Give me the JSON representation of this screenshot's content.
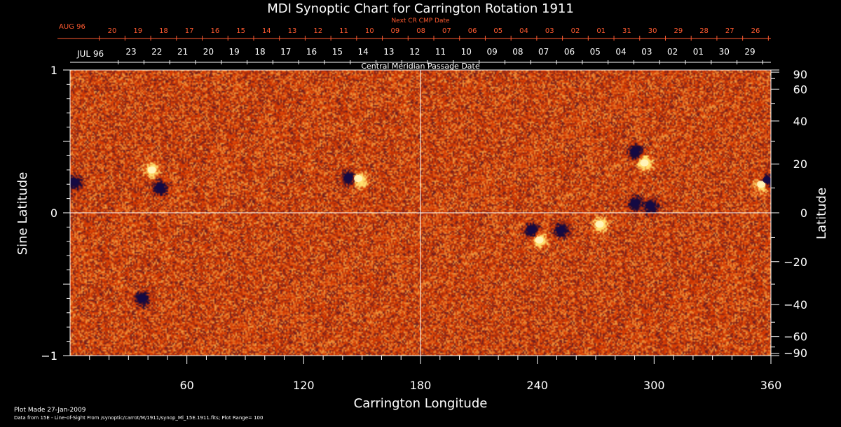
{
  "title": "MDI Synoptic Chart for Carrington Rotation 1911",
  "top_axis": {
    "caption": "Next CR CMP Date",
    "start_label": "AUG 96",
    "labels": [
      "20",
      "19",
      "18",
      "17",
      "16",
      "15",
      "14",
      "13",
      "12",
      "11",
      "10",
      "09",
      "08",
      "07",
      "06",
      "05",
      "04",
      "03",
      "02",
      "01",
      "31",
      "30",
      "29",
      "28",
      "27",
      "26"
    ]
  },
  "second_axis": {
    "caption": "Central Meridian Passage Date",
    "start_label": "JUL 96",
    "labels": [
      "23",
      "22",
      "21",
      "20",
      "19",
      "18",
      "17",
      "16",
      "15",
      "14",
      "13",
      "12",
      "11",
      "10",
      "09",
      "08",
      "07",
      "06",
      "05",
      "04",
      "03",
      "02",
      "01",
      "30",
      "29"
    ]
  },
  "chart_data": {
    "type": "heatmap",
    "title": "MDI Synoptic Chart for Carrington Rotation 1911",
    "xlabel": "Carrington Longitude",
    "ylabel": "Sine Latitude",
    "y2label": "Latitude",
    "xlim": [
      0,
      360
    ],
    "ylim": [
      -1,
      1
    ],
    "x_ticks": [
      60,
      120,
      180,
      240,
      300,
      360
    ],
    "y_ticks": [
      {
        "value": 1,
        "label": "1"
      },
      {
        "value": 0,
        "label": "0"
      },
      {
        "value": -1,
        "label": "−1"
      }
    ],
    "y2_ticks": [
      {
        "deg": 90,
        "label": "90"
      },
      {
        "deg": 60,
        "label": "60"
      },
      {
        "deg": 40,
        "label": "40"
      },
      {
        "deg": 20,
        "label": "20"
      },
      {
        "deg": 0,
        "label": "0"
      },
      {
        "deg": -20,
        "label": "−20"
      },
      {
        "deg": -40,
        "label": "−40"
      },
      {
        "deg": -60,
        "label": "−60"
      },
      {
        "deg": -90,
        "label": "−90"
      }
    ],
    "crosshair": {
      "x": 180,
      "y": 0
    },
    "plot_range": 100,
    "colormap": [
      "#1a0a3a",
      "#d83a00",
      "#ffe070"
    ],
    "active_regions": [
      {
        "lon": 2,
        "sinlat": 0.22,
        "pol": -1
      },
      {
        "lon": 42,
        "sinlat": 0.3,
        "pol": 1
      },
      {
        "lon": 46,
        "sinlat": 0.18,
        "pol": -1
      },
      {
        "lon": 143,
        "sinlat": 0.25,
        "pol": -1
      },
      {
        "lon": 148,
        "sinlat": 0.24,
        "pol": 1
      },
      {
        "lon": 237,
        "sinlat": -0.12,
        "pol": -1
      },
      {
        "lon": 241,
        "sinlat": -0.19,
        "pol": 1
      },
      {
        "lon": 252,
        "sinlat": -0.12,
        "pol": -1
      },
      {
        "lon": 272,
        "sinlat": -0.08,
        "pol": 1
      },
      {
        "lon": 290,
        "sinlat": 0.43,
        "pol": -1
      },
      {
        "lon": 295,
        "sinlat": 0.35,
        "pol": 1
      },
      {
        "lon": 290,
        "sinlat": 0.07,
        "pol": -1
      },
      {
        "lon": 298,
        "sinlat": 0.05,
        "pol": -1
      },
      {
        "lon": 355,
        "sinlat": 0.2,
        "pol": 1
      },
      {
        "lon": 358,
        "sinlat": 0.23,
        "pol": -1
      },
      {
        "lon": 37,
        "sinlat": -0.6,
        "pol": -1
      }
    ]
  },
  "footer": {
    "plot_made": "Plot Made 27-Jan-2009",
    "data_source": "Data from 15E - Line-of-Sight From /synoptic/carrot/M/1911/synop_Ml_15E.1911.fits; Plot Range= 100"
  }
}
